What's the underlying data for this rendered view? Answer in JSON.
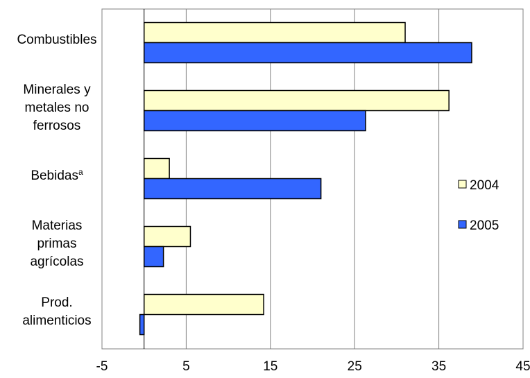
{
  "chart_data": {
    "type": "bar",
    "orientation": "horizontal",
    "categories": [
      [
        "Combustibles"
      ],
      [
        "Minerales y",
        "metales no",
        "ferrosos"
      ],
      [
        "Bebidas"
      ],
      [
        "Materias",
        "primas",
        "agrícolas"
      ],
      [
        "Prod.",
        "alimenticios"
      ]
    ],
    "category_superscripts": [
      "",
      "",
      "a",
      "",
      ""
    ],
    "series": [
      {
        "name": "2004",
        "values": [
          31,
          36.2,
          3,
          5.5,
          14.2
        ],
        "color": "#ffffcc"
      },
      {
        "name": "2005",
        "values": [
          38.9,
          26.3,
          21,
          2.3,
          -0.5
        ],
        "color": "#3366ff"
      }
    ],
    "xlim": [
      -5,
      45
    ],
    "xticks": [
      "-5",
      "5",
      "15",
      "25",
      "35",
      "45"
    ],
    "grid": true,
    "legend": "right",
    "bar_outline": "#000000",
    "grid_color": "#808080"
  }
}
